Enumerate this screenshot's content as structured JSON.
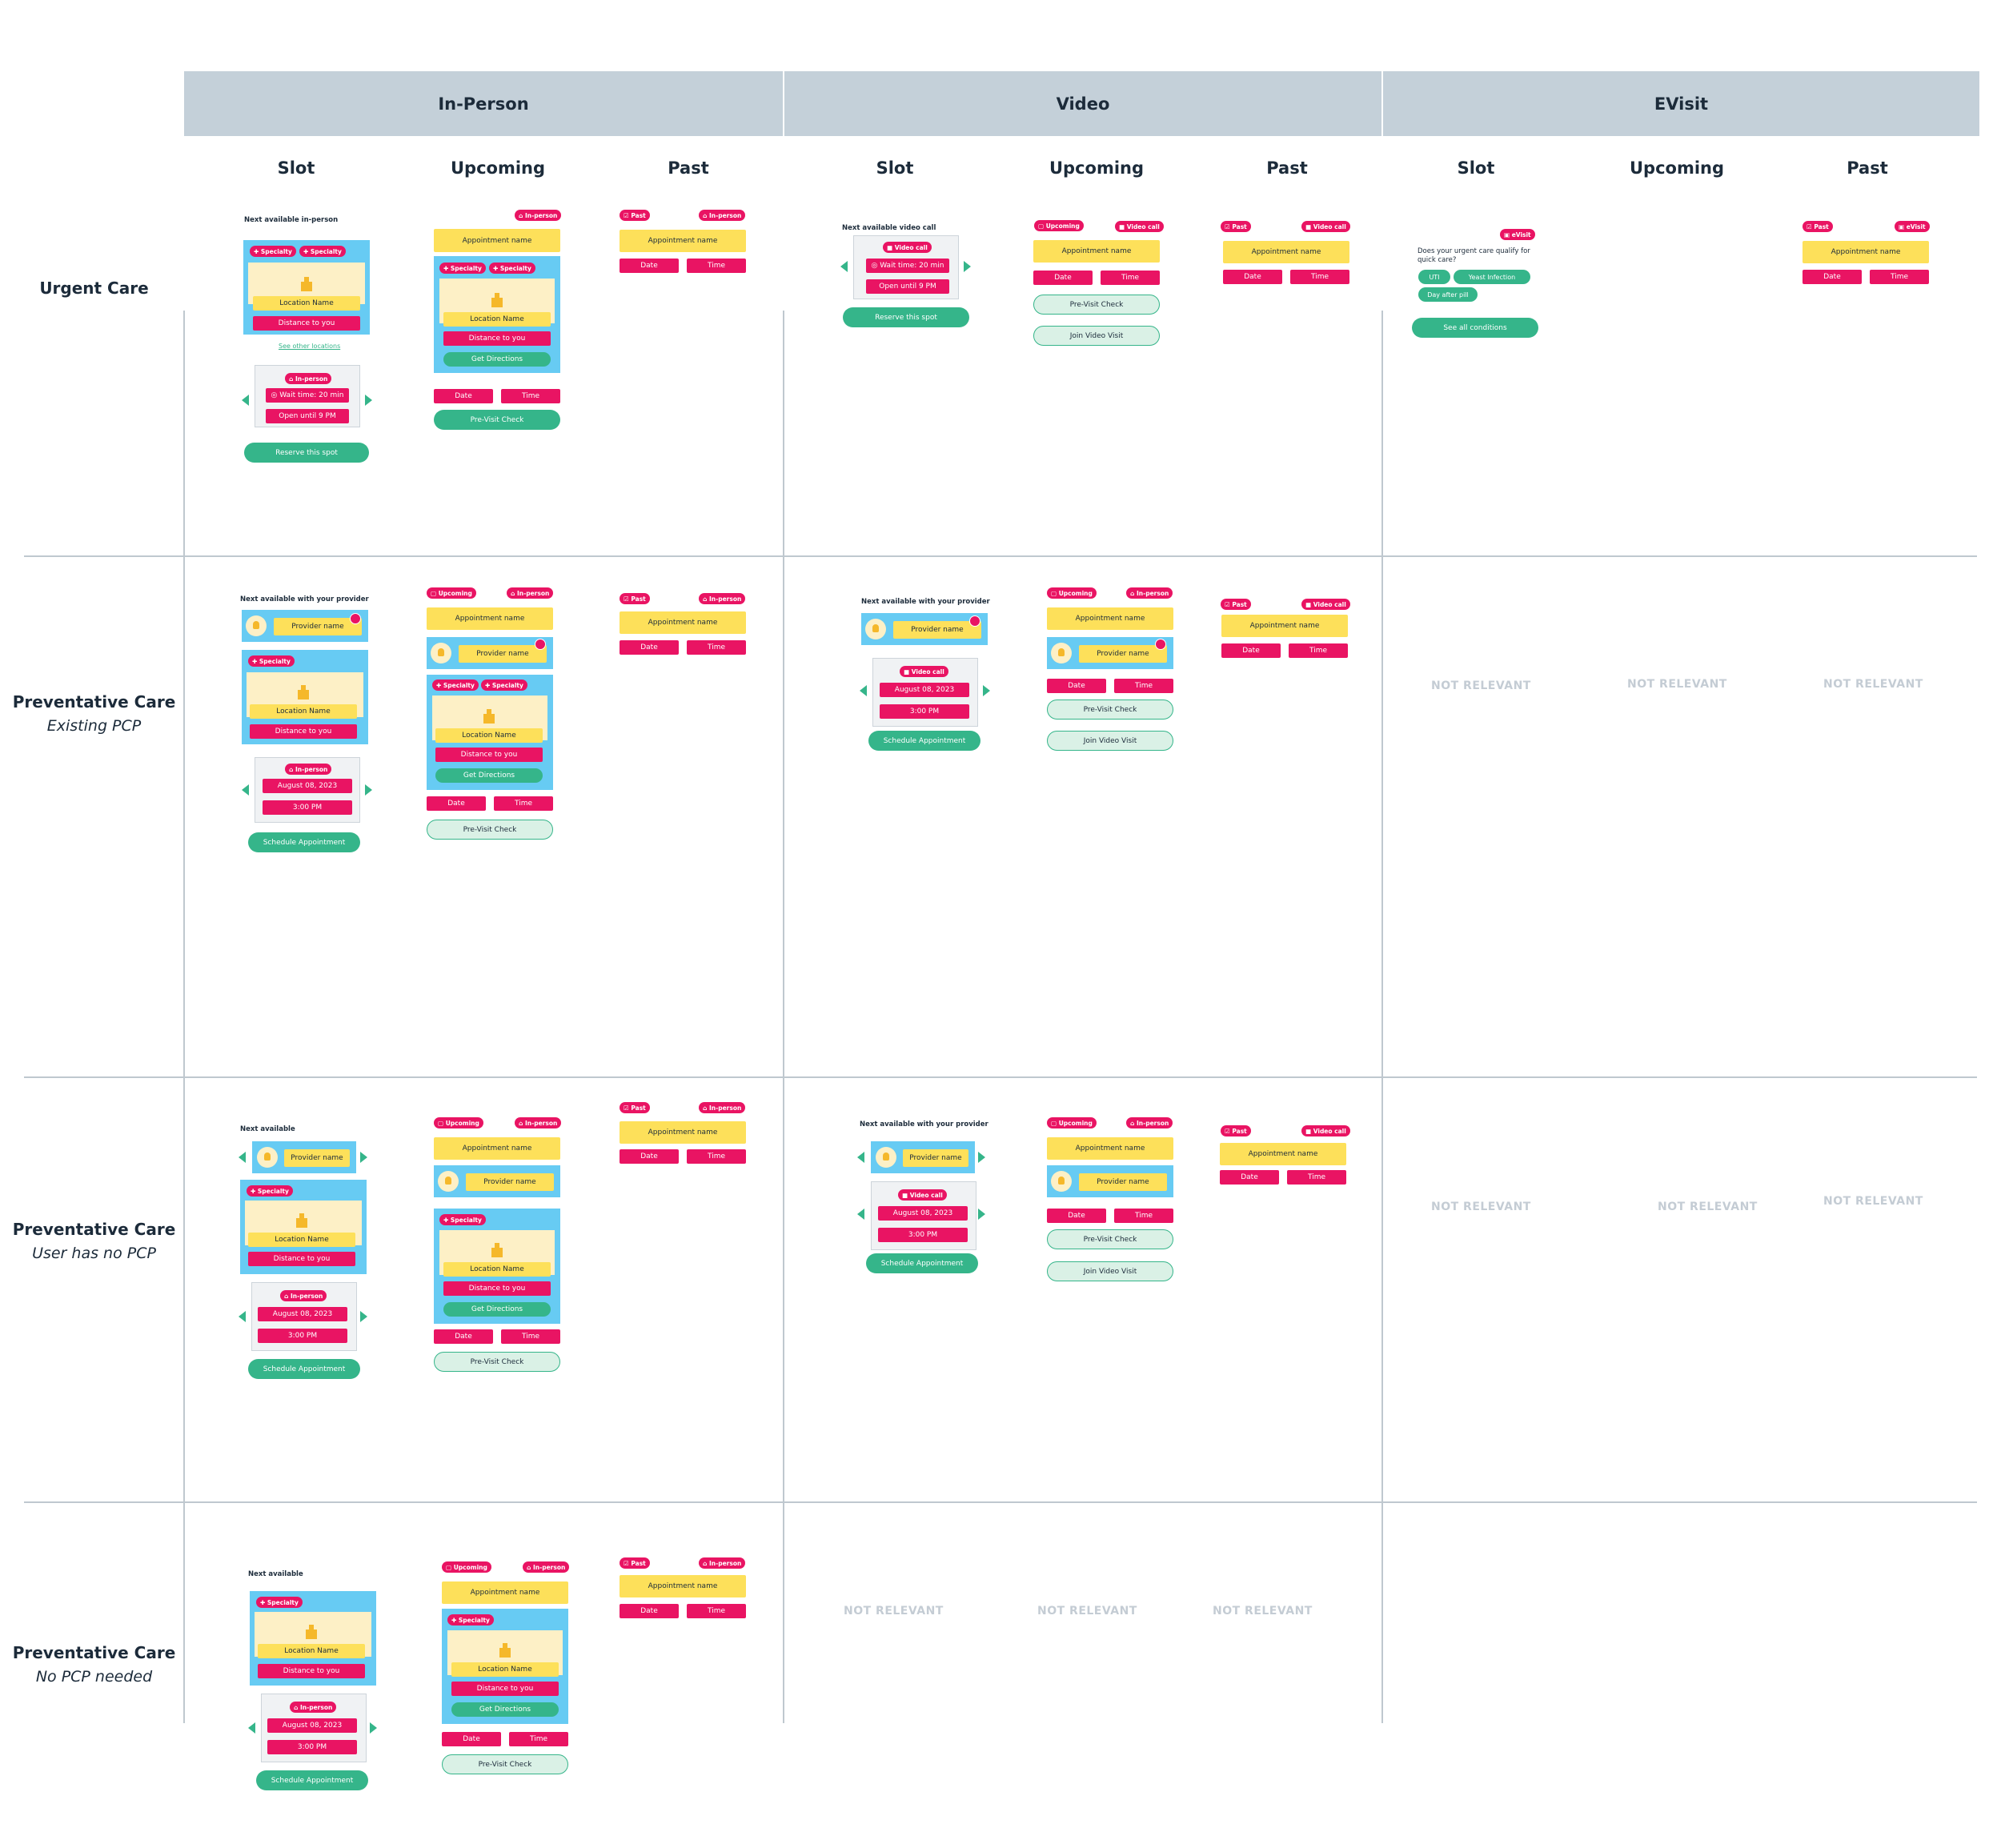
{
  "groups": [
    "In-Person",
    "Video",
    "EVisit"
  ],
  "columns": [
    "Slot",
    "Upcoming",
    "Past",
    "Slot",
    "Upcoming",
    "Past",
    "Slot",
    "Upcoming",
    "Past"
  ],
  "rows": [
    {
      "title": "Urgent Care",
      "sub": ""
    },
    {
      "title": "Preventative Care",
      "sub": "Existing PCP"
    },
    {
      "title": "Preventative Care",
      "sub": "User has no PCP"
    },
    {
      "title": "Preventative Care",
      "sub": "No PCP needed"
    }
  ],
  "not_relevant": "NOT RELEVANT",
  "labels": {
    "next_inperson": "Next available in-person",
    "next_video": "Next available video call",
    "next_provider": "Next available with your provider",
    "next": "Next available",
    "evisit_q": "Does your urgent care qualify for quick care?"
  },
  "ui": {
    "specialty": "✚ Specialty",
    "in_person": "⌂ In-person",
    "video_call": "■ Video call",
    "upcoming": "▢ Upcoming",
    "past": "☑ Past",
    "evisit": "▣ eVisit",
    "location": "Location Name",
    "distance": "Distance to you",
    "directions": "Get Directions",
    "appt": "Appointment name",
    "provider": "Provider name",
    "date": "Date",
    "time": "Time",
    "wait": "◎ Wait time: 20 min",
    "open": "Open until 9 PM",
    "date_val": "August 08, 2023",
    "time_val": "3:00 PM",
    "reserve": "Reserve this spot",
    "schedule": "Schedule Appointment",
    "previsit": "Pre-Visit Check",
    "join": "Join Video Visit",
    "see_other": "See other locations",
    "see_all": "See all conditions",
    "uti": "UTI",
    "yeast": "Yeast Infection",
    "pill": "Day after pill"
  }
}
